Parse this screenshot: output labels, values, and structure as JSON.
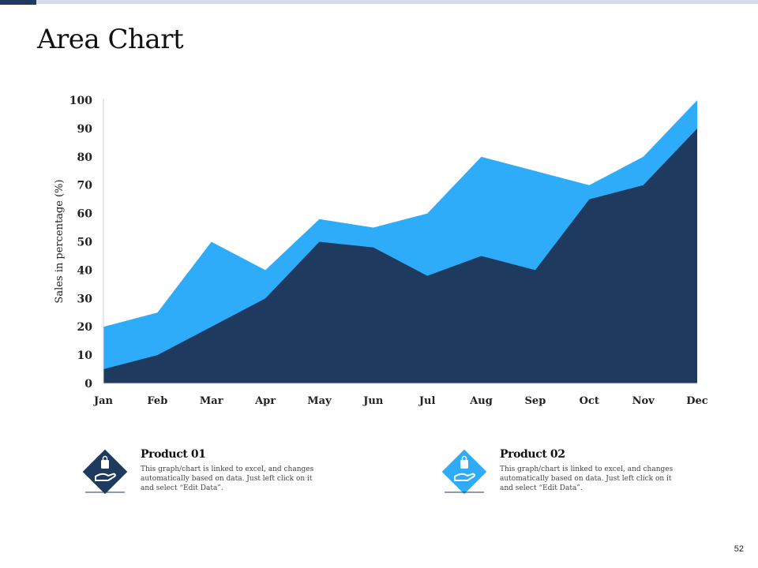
{
  "page": {
    "title": "Area Chart",
    "page_number": "52"
  },
  "colors": {
    "product_01": "#1f3a5f",
    "product_02": "#2eacf9",
    "accent_dark": "#1f3a5f",
    "accent_light": "#d6dde6"
  },
  "chart_data": {
    "type": "area",
    "categories": [
      "Jan",
      "Feb",
      "Mar",
      "Apr",
      "May",
      "Jun",
      "Jul",
      "Aug",
      "Sep",
      "Oct",
      "Nov",
      "Dec"
    ],
    "series": [
      {
        "name": "Product 01",
        "values": [
          5,
          10,
          20,
          30,
          50,
          48,
          38,
          45,
          40,
          65,
          70,
          90
        ]
      },
      {
        "name": "Product 02",
        "values": [
          20,
          25,
          50,
          40,
          58,
          55,
          60,
          80,
          75,
          70,
          80,
          100
        ]
      }
    ],
    "ylabel": "Sales in percentage (%)",
    "xlabel": "",
    "ylim": [
      0,
      100
    ],
    "yticks": [
      0,
      10,
      20,
      30,
      40,
      50,
      60,
      70,
      80,
      90,
      100
    ],
    "grid": false,
    "legend": "bottom"
  },
  "legend_cards": [
    {
      "icon": "hand-with-bag-icon",
      "title": "Product 01",
      "text": "This graph/chart is linked to excel, and changes automatically based on data. Just left click on it and select “Edit Data”."
    },
    {
      "icon": "hand-with-bag-icon",
      "title": "Product 02",
      "text": "This graph/chart is linked to excel, and changes automatically based on data. Just left click on it and select “Edit Data”."
    }
  ]
}
